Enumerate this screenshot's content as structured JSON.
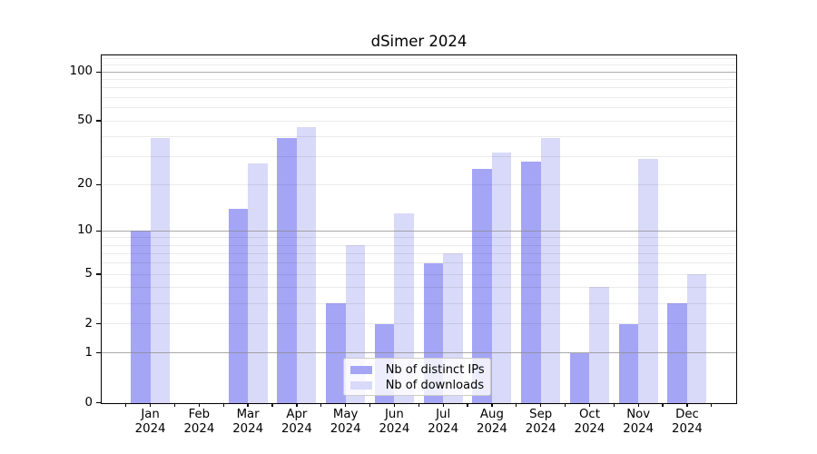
{
  "title": "dSimer 2024",
  "chart_data": {
    "type": "bar",
    "title": "dSimer 2024",
    "categories": [
      "Jan",
      "Feb",
      "Mar",
      "Apr",
      "May",
      "Jun",
      "Jul",
      "Aug",
      "Sep",
      "Oct",
      "Nov",
      "Dec"
    ],
    "x_label_year_line": "2024",
    "series": [
      {
        "name": "Nb of distinct IPs",
        "color": "#a5a5f6",
        "values": [
          10,
          0,
          14,
          39,
          3,
          2,
          6,
          25,
          28,
          1,
          2,
          3
        ]
      },
      {
        "name": "Nb of downloads",
        "color": "#d9d9f9",
        "values": [
          39,
          0,
          27,
          46,
          8,
          13,
          7,
          32,
          39,
          4,
          29,
          5
        ]
      }
    ],
    "y_scale": "log1p",
    "y_ticks": [
      0,
      1,
      2,
      5,
      10,
      20,
      50,
      100
    ],
    "y_major_grid": [
      1,
      10,
      100
    ],
    "y_minor_grid": [
      2,
      3,
      4,
      5,
      6,
      7,
      8,
      9,
      20,
      30,
      40,
      50,
      60,
      70,
      80,
      90,
      110,
      120
    ],
    "ylim": [
      0,
      126
    ],
    "grid": "horizontal",
    "legend_position": "lower-center"
  },
  "colors": {
    "background": "#ffffff",
    "bar_distinct_ips": "#a5a5f6",
    "bar_downloads": "#d9d9f9",
    "grid_major": "#b0b0b0",
    "grid_minor": "#ebebeb",
    "spine": "#000000",
    "text": "#000000",
    "legend_border": "#cccccc"
  }
}
